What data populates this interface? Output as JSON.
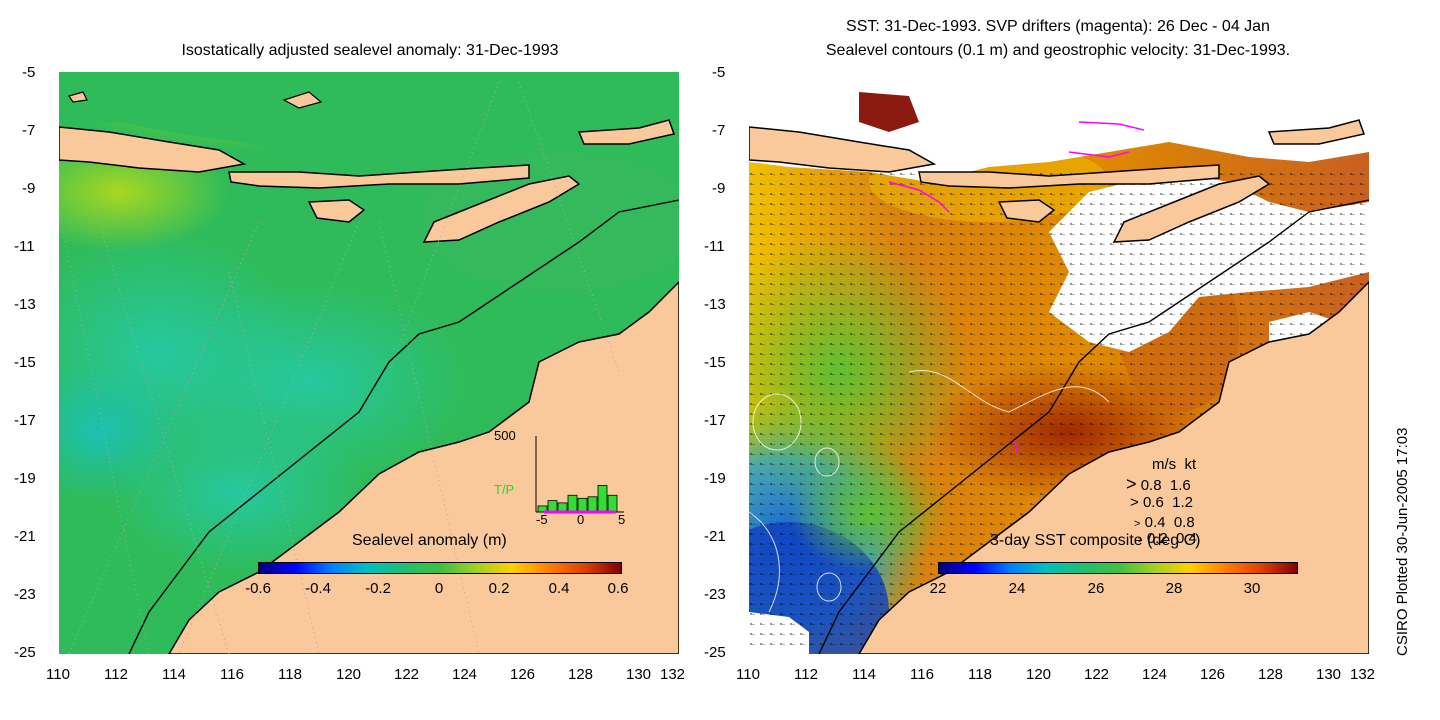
{
  "left_panel": {
    "title": "Isostatically adjusted sealevel anomaly: 31-Dec-1993",
    "colorbar_label": "Sealevel anomaly (m)",
    "colorbar_ticks": [
      "-0.6",
      "-0.4",
      "-0.2",
      "0",
      "0.2",
      "0.4",
      "0.6"
    ],
    "inset": {
      "ymax": "500",
      "label": "T/P",
      "xticks": [
        "-5",
        "0",
        "5"
      ],
      "bars": [
        0.08,
        0.15,
        0.12,
        0.22,
        0.18,
        0.2,
        0.35,
        0.22
      ]
    }
  },
  "right_panel": {
    "title_line1": "SST: 31-Dec-1993. SVP drifters (magenta): 26 Dec - 04 Jan",
    "title_line2": "Sealevel contours (0.1 m) and geostrophic velocity: 31-Dec-1993.",
    "colorbar_label": "3-day SST composite (deg C)",
    "colorbar_ticks": [
      "22",
      "24",
      "26",
      "28",
      "30"
    ],
    "legend_header": {
      "ms": "m/s",
      "kt": "kt"
    },
    "legend": [
      {
        "ms": "0.8",
        "kt": "1.6"
      },
      {
        "ms": "0.6",
        "kt": "1.2"
      },
      {
        "ms": "0.4",
        "kt": "0.8"
      },
      {
        "ms": "0.2",
        "kt": "0.4"
      }
    ]
  },
  "y_ticks": [
    "-5",
    "-7",
    "-9",
    "-11",
    "-13",
    "-15",
    "-17",
    "-19",
    "-21",
    "-23",
    "-25"
  ],
  "x_ticks": [
    "110",
    "112",
    "114",
    "116",
    "118",
    "120",
    "122",
    "124",
    "126",
    "128",
    "130",
    "132"
  ],
  "credit": "CSIRO Plotted 30-Jun-2005 17:03",
  "colors": {
    "land": "#f9c99b",
    "sla_base": "#3ec25a",
    "cloud": "#ffffff",
    "drifter": "#ff00ff"
  }
}
